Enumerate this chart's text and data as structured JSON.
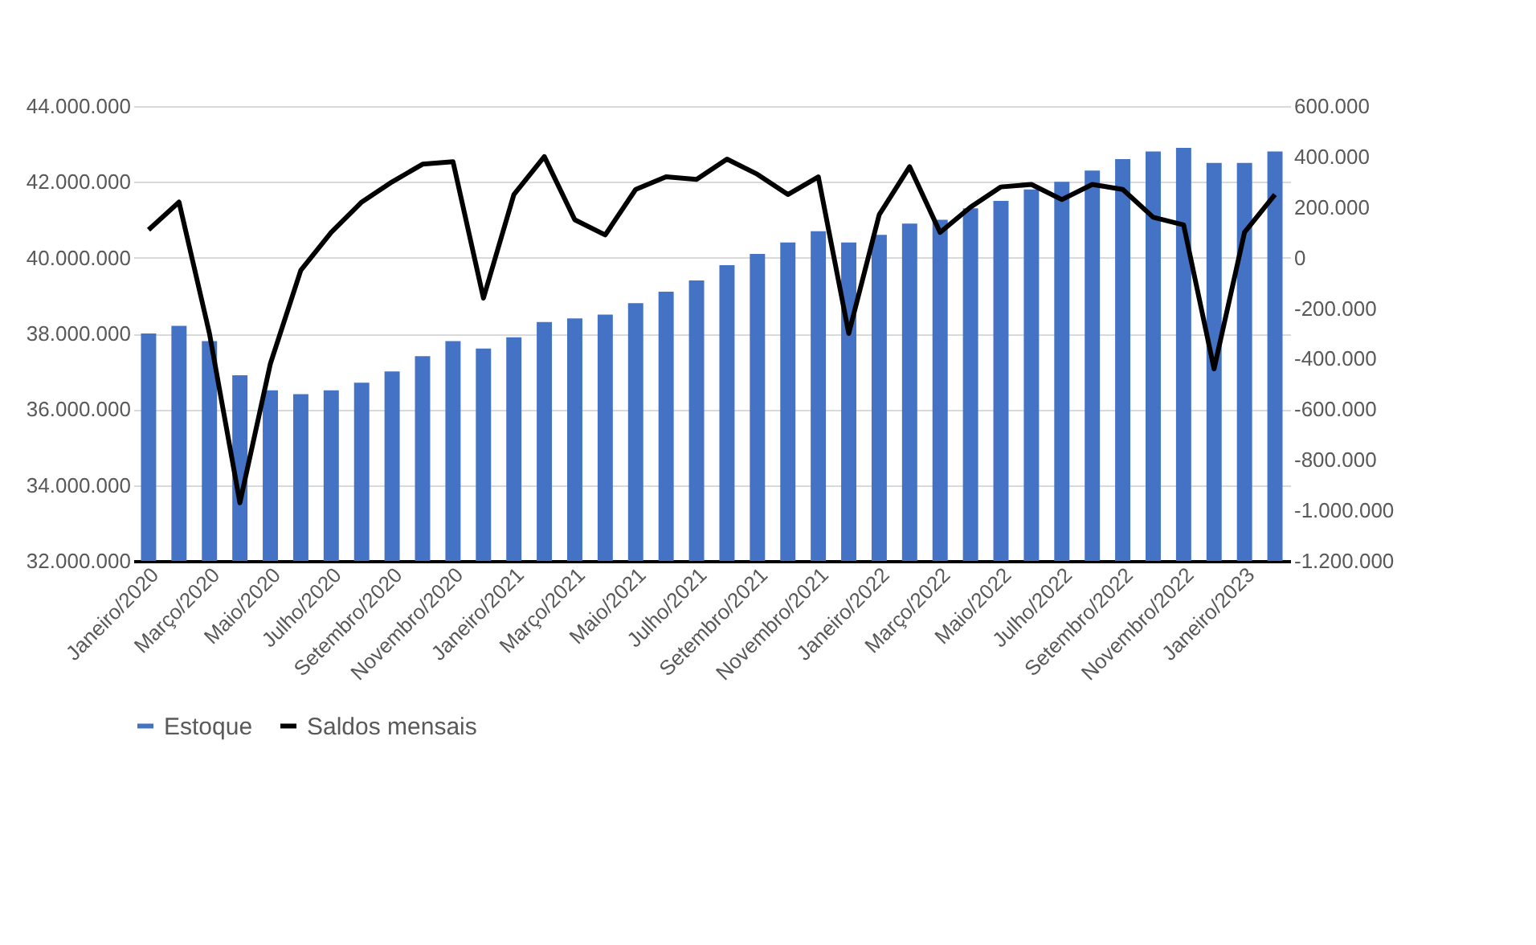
{
  "chart_data": {
    "type": "bar",
    "categories": [
      "Janeiro/2020",
      null,
      "Março/2020",
      null,
      "Maio/2020",
      null,
      "Julho/2020",
      null,
      "Setembro/2020",
      null,
      "Novembro/2020",
      null,
      "Janeiro/2021",
      null,
      "Março/2021",
      null,
      "Maio/2021",
      null,
      "Julho/2021",
      null,
      "Setembro/2021",
      null,
      "Novembro/2021",
      null,
      "Janeiro/2022",
      null,
      "Março/2022",
      null,
      "Maio/2022",
      null,
      "Julho/2022",
      null,
      "Setembro/2022",
      null,
      "Novembro/2022",
      null,
      "Janeiro/2023",
      null
    ],
    "series": [
      {
        "name": "Estoque",
        "color": "#4472c4",
        "values": [
          38000000,
          38200000,
          37800000,
          36900000,
          36500000,
          36400000,
          36500000,
          36700000,
          37000000,
          37400000,
          37800000,
          37600000,
          37900000,
          38300000,
          38400000,
          38500000,
          38800000,
          39100000,
          39400000,
          39800000,
          40100000,
          40400000,
          40700000,
          40400000,
          40600000,
          40900000,
          41000000,
          41300000,
          41500000,
          41800000,
          42000000,
          42300000,
          42600000,
          42800000,
          42900000,
          42500000,
          42500000,
          42800000
        ]
      },
      {
        "name": "Saldos mensais",
        "type": "line",
        "axis": "y2",
        "color": "#000000",
        "values": [
          110000,
          220000,
          -300000,
          -970000,
          -420000,
          -50000,
          100000,
          220000,
          300000,
          370000,
          380000,
          -160000,
          250000,
          400000,
          150000,
          90000,
          270000,
          320000,
          310000,
          390000,
          330000,
          250000,
          320000,
          -300000,
          170000,
          360000,
          100000,
          200000,
          280000,
          290000,
          230000,
          290000,
          270000,
          160000,
          130000,
          -440000,
          100000,
          250000
        ]
      }
    ],
    "ylim": [
      32000000,
      44000000
    ],
    "yticks": [
      {
        "value": 32000000,
        "label": "32.000.000"
      },
      {
        "value": 34000000,
        "label": "34.000.000"
      },
      {
        "value": 36000000,
        "label": "36.000.000"
      },
      {
        "value": 38000000,
        "label": "38.000.000"
      },
      {
        "value": 40000000,
        "label": "40.000.000"
      },
      {
        "value": 42000000,
        "label": "42.000.000"
      },
      {
        "value": 44000000,
        "label": "44.000.000"
      }
    ],
    "y2lim": [
      -1200000,
      600000
    ],
    "y2ticks": [
      {
        "value": -1200000,
        "label": "-1.200.000"
      },
      {
        "value": -1000000,
        "label": "-1.000.000"
      },
      {
        "value": -800000,
        "label": "-800.000"
      },
      {
        "value": -600000,
        "label": "-600.000"
      },
      {
        "value": -400000,
        "label": "-400.000"
      },
      {
        "value": -200000,
        "label": "-200.000"
      },
      0,
      {
        "value": 200000,
        "label": "200.000"
      },
      {
        "value": 400000,
        "label": "400.000"
      },
      {
        "value": 600000,
        "label": "600.000"
      }
    ],
    "grid": "y",
    "legend": "bottom"
  }
}
